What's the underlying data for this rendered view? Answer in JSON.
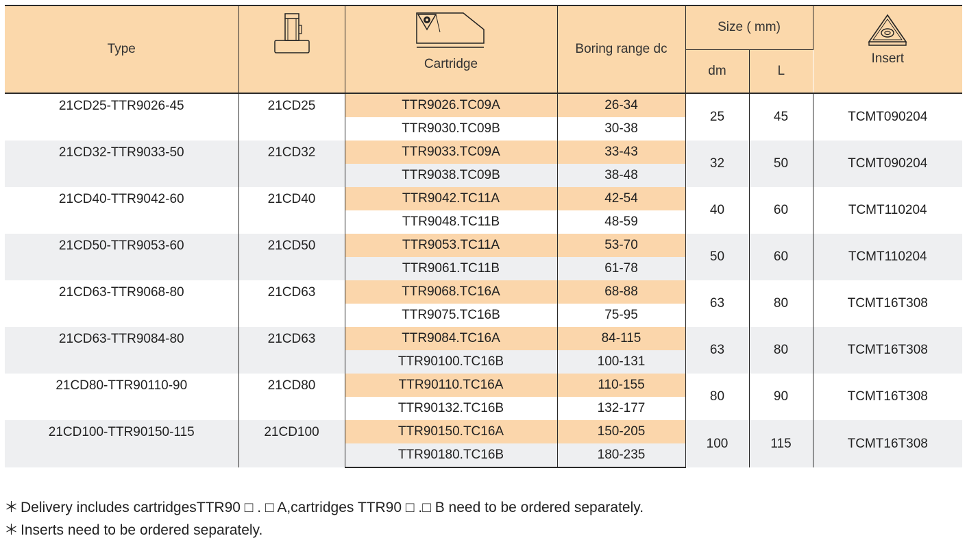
{
  "header": {
    "type": "Type",
    "cartridge": "Cartridge",
    "boring_range": "Boring range  dc",
    "size": "Size ( mm)",
    "dm": "dm",
    "l": "L",
    "insert": "Insert",
    "icons": [
      "holder-icon",
      "cartridge-icon",
      "insert-icon"
    ]
  },
  "rows": [
    {
      "type": "21CD25-TTR9026-45",
      "holder": "21CD25",
      "cart_a": "TTR9026.TC09A",
      "range_a": "26-34",
      "cart_b": "TTR9030.TC09B",
      "range_b": "30-38",
      "dm": "25",
      "l": "45",
      "insert": "TCMT090204"
    },
    {
      "type": "21CD32-TTR9033-50",
      "holder": "21CD32",
      "cart_a": "TTR9033.TC09A",
      "range_a": "33-43",
      "cart_b": "TTR9038.TC09B",
      "range_b": "38-48",
      "dm": "32",
      "l": "50",
      "insert": "TCMT090204"
    },
    {
      "type": "21CD40-TTR9042-60",
      "holder": "21CD40",
      "cart_a": "TTR9042.TC11A",
      "range_a": "42-54",
      "cart_b": "TTR9048.TC11B",
      "range_b": "48-59",
      "dm": "40",
      "l": "60",
      "insert": "TCMT110204"
    },
    {
      "type": "21CD50-TTR9053-60",
      "holder": "21CD50",
      "cart_a": "TTR9053.TC11A",
      "range_a": "53-70",
      "cart_b": "TTR9061.TC11B",
      "range_b": "61-78",
      "dm": "50",
      "l": "60",
      "insert": "TCMT110204"
    },
    {
      "type": "21CD63-TTR9068-80",
      "holder": "21CD63",
      "cart_a": "TTR9068.TC16A",
      "range_a": "68-88",
      "cart_b": "TTR9075.TC16B",
      "range_b": "75-95",
      "dm": "63",
      "l": "80",
      "insert": "TCMT16T308"
    },
    {
      "type": "21CD63-TTR9084-80",
      "holder": "21CD63",
      "cart_a": "TTR9084.TC16A",
      "range_a": "84-115",
      "cart_b": "TTR90100.TC16B",
      "range_b": "100-131",
      "dm": "63",
      "l": "80",
      "insert": "TCMT16T308"
    },
    {
      "type": "21CD80-TTR90110-90",
      "holder": "21CD80",
      "cart_a": "TTR90110.TC16A",
      "range_a": "110-155",
      "cart_b": "TTR90132.TC16B",
      "range_b": "132-177",
      "dm": "80",
      "l": "90",
      "insert": "TCMT16T308"
    },
    {
      "type": "21CD100-TTR90150-115",
      "holder": "21CD100",
      "cart_a": "TTR90150.TC16A",
      "range_a": "150-205",
      "cart_b": "TTR90180.TC16B",
      "range_b": "180-235",
      "dm": "100",
      "l": "115",
      "insert": "TCMT16T308"
    }
  ],
  "notes": {
    "bullet": "＊",
    "line1": "Delivery includes cartridgesTTR90 □ . □  A,cartridges TTR90 □ .□  B need to be ordered separately.",
    "line2": "Inserts need to be ordered separately."
  },
  "colors": {
    "header_bg": "#fbd8ab",
    "cartridge_a_bg": "#fbd6ab",
    "alt_row_bg": "#eeeff1",
    "border": "#2a2a2a"
  }
}
